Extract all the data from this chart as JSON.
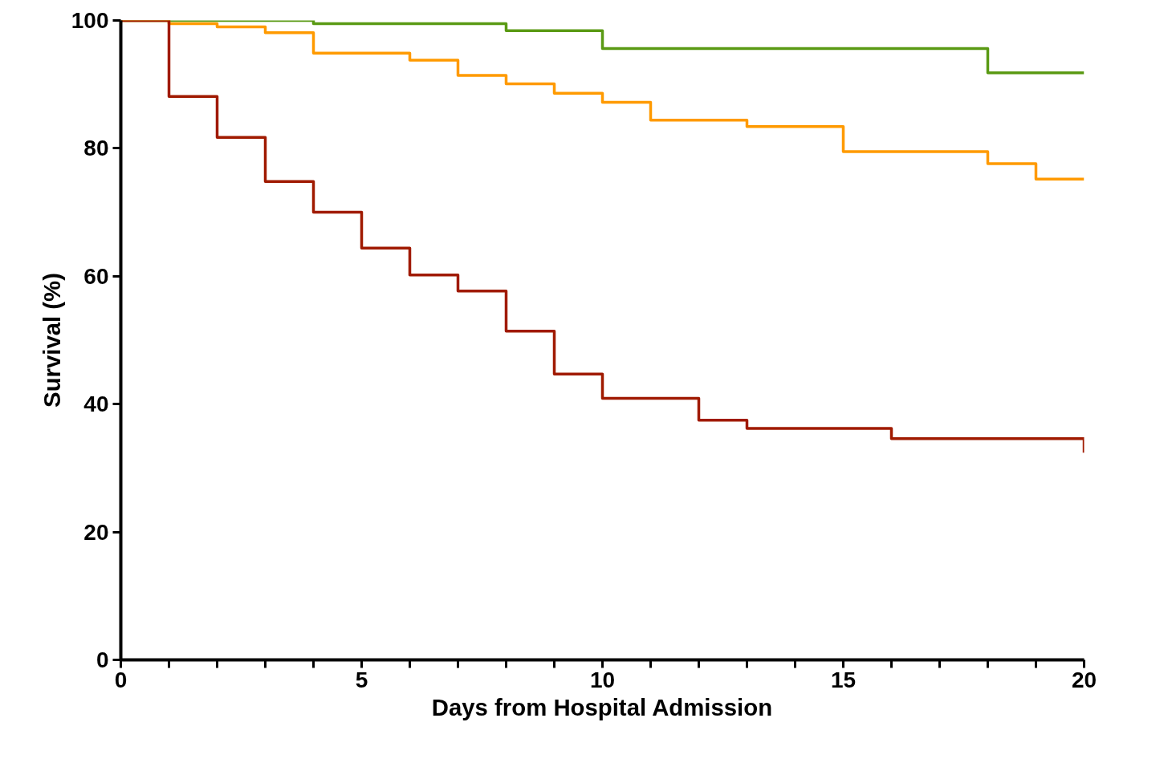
{
  "chart_data": {
    "type": "step",
    "xlabel": "Days from Hospital Admission",
    "ylabel": "Survival (%)",
    "xlim": [
      0,
      20
    ],
    "ylim": [
      0,
      100
    ],
    "xticks": [
      0,
      {
        "value": 1,
        "label": null
      },
      {
        "value": 2,
        "label": null
      },
      {
        "value": 3,
        "label": null
      },
      {
        "value": 4,
        "label": null
      },
      5,
      {
        "value": 6,
        "label": null
      },
      {
        "value": 7,
        "label": null
      },
      {
        "value": 8,
        "label": null
      },
      {
        "value": 9,
        "label": null
      },
      10,
      {
        "value": 11,
        "label": null
      },
      {
        "value": 12,
        "label": null
      },
      {
        "value": 13,
        "label": null
      },
      {
        "value": 14,
        "label": null
      },
      15,
      {
        "value": 16,
        "label": null
      },
      {
        "value": 17,
        "label": null
      },
      {
        "value": 18,
        "label": null
      },
      {
        "value": 19,
        "label": null
      },
      20
    ],
    "yticks": [
      0,
      20,
      40,
      60,
      80,
      100
    ],
    "grid": false,
    "marker": "none",
    "line_style": "solid",
    "series": [
      {
        "color": "#5a9a14",
        "x": [
          0,
          4,
          8,
          10,
          18,
          20
        ],
        "values": [
          100,
          99.5,
          98.4,
          95.6,
          91.8,
          91.8
        ]
      },
      {
        "color": "#ff9a00",
        "x": [
          0,
          1,
          2,
          3,
          4,
          6,
          7,
          8,
          9,
          10,
          11,
          13,
          15,
          18,
          19,
          20
        ],
        "values": [
          100,
          99.5,
          99.0,
          98.1,
          94.9,
          93.8,
          91.4,
          90.1,
          88.6,
          87.2,
          84.4,
          83.4,
          79.5,
          77.6,
          75.2,
          75.2
        ]
      },
      {
        "color": "#a01a00",
        "x": [
          0,
          1,
          2,
          3,
          4,
          5,
          6,
          7,
          8,
          9,
          10,
          12,
          13,
          16,
          20
        ],
        "values": [
          100,
          88.1,
          81.7,
          74.8,
          70.0,
          64.4,
          60.2,
          57.7,
          51.4,
          44.7,
          40.9,
          37.5,
          36.2,
          34.6,
          32.4
        ]
      }
    ]
  }
}
